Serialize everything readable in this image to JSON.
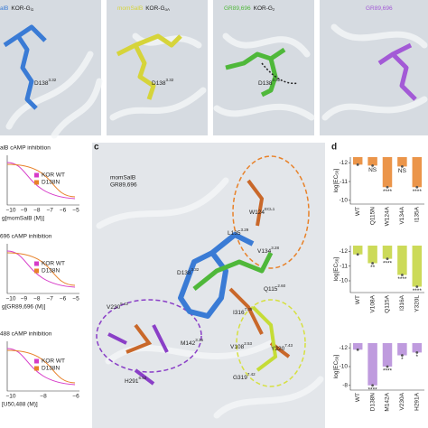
{
  "top_panels": [
    {
      "ligand": "alB",
      "complex": "KOR-G",
      "complex_sub": "i1",
      "residue": "D138",
      "residue_sup": "3.32",
      "color": "#3a7bd5"
    },
    {
      "ligand": "momSalB",
      "complex": "KOR-G",
      "complex_sub": "oA",
      "residue": "D138",
      "residue_sup": "3.32",
      "color": "#d6d43a"
    },
    {
      "ligand": "GR89,696",
      "complex": "KOR-G",
      "complex_sub": "z",
      "residue": "D138",
      "residue_sup": "3.32",
      "color": "#4fb83a"
    },
    {
      "ligand": "GR89,696",
      "color": "#a35ad6"
    }
  ],
  "left_panels": [
    {
      "title": "alB cAMP inhibition",
      "legend": [
        "KOR WT",
        "D138N"
      ],
      "xticks": [
        "−10",
        "−9",
        "−8",
        "−7",
        "−6",
        "−5"
      ],
      "xlabel": "g[momSalB (M)]"
    },
    {
      "title": "696 cAMP inhibition",
      "legend": [
        "KOR WT",
        "D138N"
      ],
      "xticks": [
        "−10",
        "−9",
        "−8",
        "−7",
        "−6",
        "−5"
      ],
      "xlabel": "g[GR89,696 (M)]"
    },
    {
      "title": "488 cAMP inhibition",
      "legend": [
        "KOR WT",
        "D138N"
      ],
      "xticks": [
        "−10",
        "−8",
        "−6"
      ],
      "xlabel": "[U50,488 (M)]"
    }
  ],
  "panel_c": {
    "label": "c",
    "ligands": [
      {
        "name": "momSalB",
        "color": "#3a7bd5"
      },
      {
        "name": "GR89,696",
        "color": "#4fb83a"
      }
    ],
    "residues": [
      {
        "name": "W124",
        "sup": "ECL1"
      },
      {
        "name": "L135",
        "sup": "3.29"
      },
      {
        "name": "V134",
        "sup": "3.28"
      },
      {
        "name": "D138",
        "sup": "3.32"
      },
      {
        "name": "Q115",
        "sup": "2.60"
      },
      {
        "name": "I316",
        "sup": "7.39"
      },
      {
        "name": "V230",
        "sup": "5.42"
      },
      {
        "name": "M142",
        "sup": "3.36"
      },
      {
        "name": "V108",
        "sup": "2.53"
      },
      {
        "name": "Y320",
        "sup": "7.43"
      },
      {
        "name": "H291",
        "sup": "6.52"
      },
      {
        "name": "G319",
        "sup": "7.42"
      }
    ]
  },
  "panel_d": {
    "label": "d",
    "ylabel": "log[EC",
    "ylabel_sub": "50",
    "ylabel_end": "]",
    "charts": [
      {
        "categories": [
          "WT",
          "Q115N",
          "W124A",
          "V134A",
          "I135A"
        ],
        "values": [
          -11.9,
          -11.85,
          -10.7,
          -11.8,
          -10.7
        ],
        "significance": [
          null,
          "NS",
          "****",
          "NS",
          "****"
        ],
        "ylim": [
          -12.3,
          -9.8
        ],
        "yticks": [
          -12,
          -11,
          -10
        ],
        "color": "#e8822a"
      },
      {
        "categories": [
          "WT",
          "V108A",
          "Q115A",
          "I316A",
          "Y320L"
        ],
        "values": [
          -11.8,
          -11.2,
          -11.5,
          -10.4,
          -9.6
        ],
        "significance": [
          null,
          "**",
          "****",
          "****",
          "****"
        ],
        "ylim": [
          -12.4,
          -9.2
        ],
        "yticks": [
          -12,
          -11,
          -10
        ],
        "color": "#c3d43c"
      },
      {
        "categories": [
          "WT",
          "D138N",
          "M142A",
          "V230A",
          "H291A"
        ],
        "values": [
          -11.8,
          -8.0,
          -10.0,
          -11.2,
          -11.5
        ],
        "significance": [
          null,
          "****",
          "****",
          "*",
          "*"
        ],
        "ylim": [
          -12.5,
          -7.5
        ],
        "yticks": [
          -12,
          -10,
          -8
        ],
        "color": "#b48ad8"
      }
    ]
  }
}
